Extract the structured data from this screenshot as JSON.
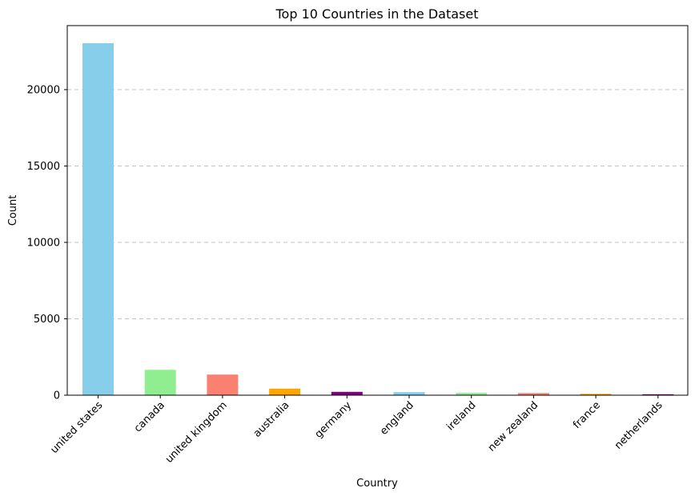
{
  "chart_data": {
    "type": "bar",
    "title": "Top 10 Countries in the Dataset",
    "xlabel": "Country",
    "ylabel": "Count",
    "categories": [
      "united states",
      "canada",
      "united kingdom",
      "australia",
      "germany",
      "england",
      "ireland",
      "new zealand",
      "france",
      "netherlands"
    ],
    "values": [
      23040,
      1660,
      1350,
      430,
      220,
      200,
      150,
      140,
      90,
      60
    ],
    "colors": [
      "#87ceeb",
      "#90ee90",
      "#fa8072",
      "#ffa500",
      "#800080",
      "#87ceeb",
      "#90ee90",
      "#fa8072",
      "#ffa500",
      "#800080"
    ],
    "ylim": [
      0,
      24190
    ],
    "yticks": [
      0,
      5000,
      10000,
      15000,
      20000
    ],
    "grid": "y-dashed",
    "legend": "none"
  }
}
